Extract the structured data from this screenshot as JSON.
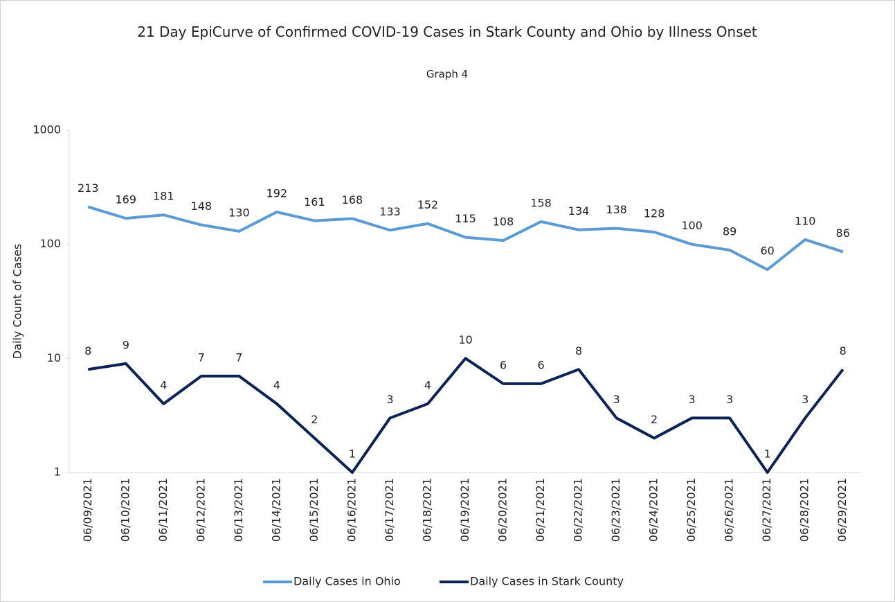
{
  "chart_data": {
    "type": "line",
    "title": "21 Day EpiCurve of Confirmed COVID-19 Cases in Stark County and Ohio by Illness Onset",
    "subtitle": "Graph 4",
    "y_label": "Daily Count of Cases",
    "categories": [
      "06/09/2021",
      "06/10/2021",
      "06/11/2021",
      "06/12/2021",
      "06/13/2021",
      "06/14/2021",
      "06/15/2021",
      "06/16/2021",
      "06/17/2021",
      "06/18/2021",
      "06/19/2021",
      "06/20/2021",
      "06/21/2021",
      "06/22/2021",
      "06/23/2021",
      "06/24/2021",
      "06/25/2021",
      "06/26/2021",
      "06/27/2021",
      "06/28/2021",
      "06/29/2021"
    ],
    "series": [
      {
        "name": "Daily Cases in Ohio",
        "color": "#5b9bd5",
        "values": [
          213,
          169,
          181,
          148,
          130,
          192,
          161,
          168,
          133,
          152,
          115,
          108,
          158,
          134,
          138,
          128,
          100,
          89,
          60,
          110,
          86
        ]
      },
      {
        "name": "Daily Cases in Stark County",
        "color": "#0b2257",
        "values": [
          8,
          9,
          4,
          7,
          7,
          4,
          2,
          1,
          3,
          4,
          10,
          6,
          6,
          8,
          3,
          2,
          3,
          3,
          1,
          3,
          8
        ]
      }
    ],
    "ylim": [
      1,
      1000
    ],
    "yticks": [
      1,
      10,
      100,
      1000
    ],
    "log_scale": true,
    "grid": false,
    "legend": "bottom"
  }
}
